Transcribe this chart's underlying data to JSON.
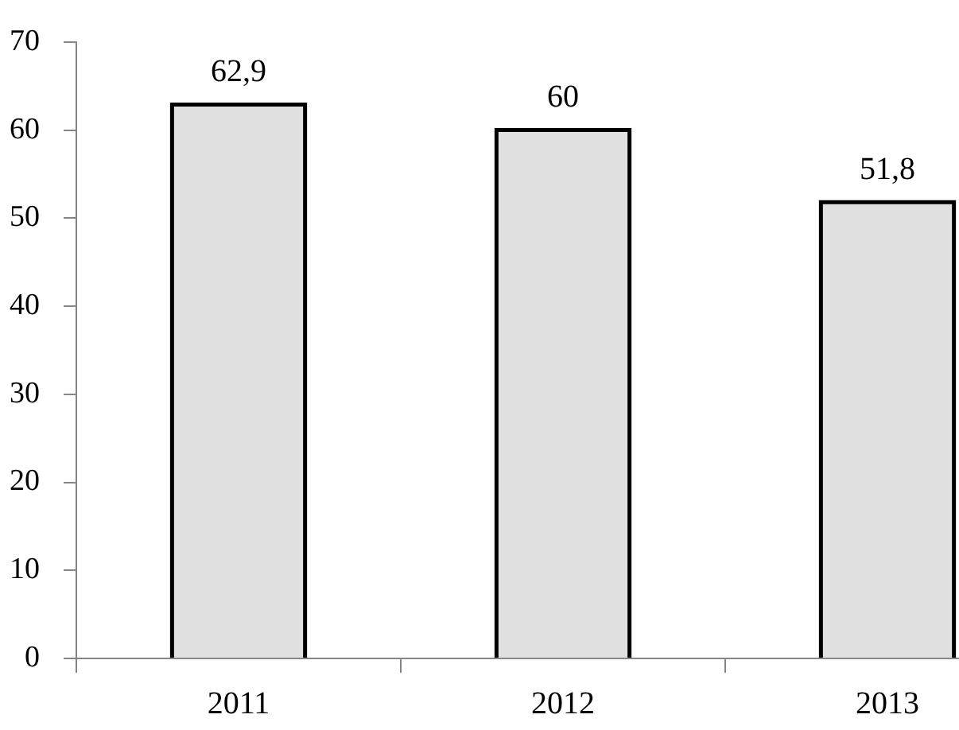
{
  "chart_data": {
    "type": "bar",
    "categories": [
      "2011",
      "2012",
      "2013"
    ],
    "values": [
      62.9,
      60,
      51.8
    ],
    "value_labels": [
      "62,9",
      "60",
      "51,8"
    ],
    "color": "#e0e0e0",
    "ylim": [
      0,
      70
    ],
    "yticks": [
      0,
      10,
      20,
      30,
      40,
      50,
      60,
      70
    ],
    "grid": false,
    "legend": false
  }
}
